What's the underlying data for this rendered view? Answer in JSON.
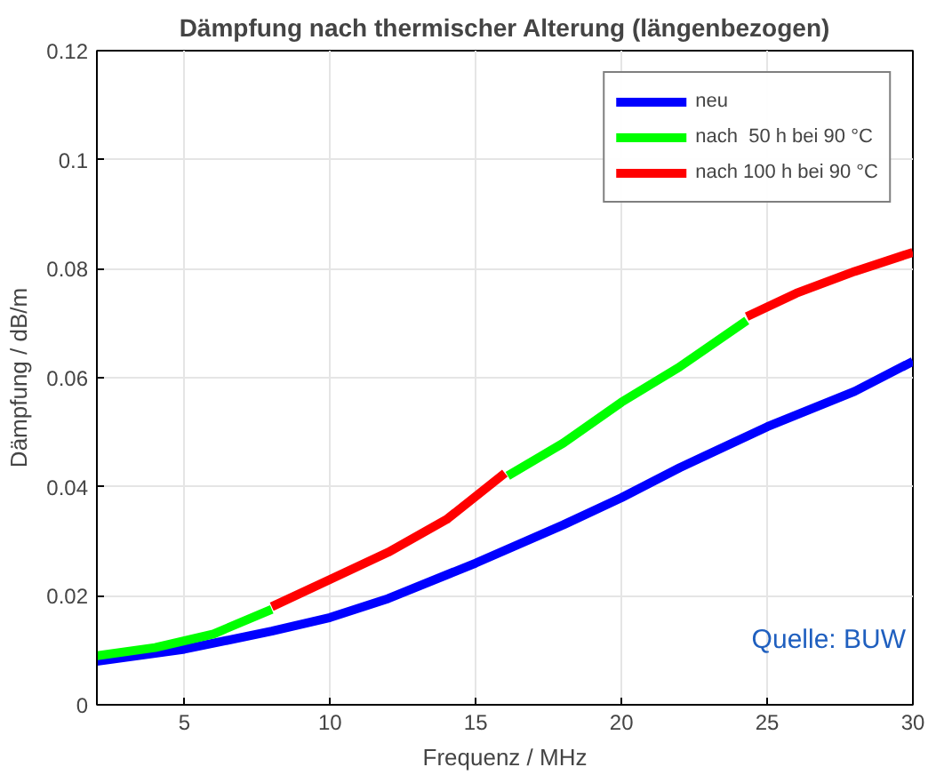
{
  "chart_data": {
    "type": "line",
    "title": "Dämpfung nach thermischer Alterung (längenbezogen)",
    "xlabel": "Frequenz / MHz",
    "ylabel": "Dämpfung / dB/m",
    "xlim": [
      2,
      30
    ],
    "ylim": [
      0,
      0.12
    ],
    "xticks": [
      5,
      10,
      15,
      20,
      25,
      30
    ],
    "yticks": [
      0,
      0.02,
      0.04,
      0.06,
      0.08,
      0.1,
      0.12
    ],
    "grid": true,
    "legend": "top right",
    "line_style": "solid",
    "series": [
      {
        "name": "neu",
        "color": "#0000ff",
        "x": [
          2,
          5,
          8,
          10,
          12,
          15,
          18,
          20,
          22,
          25,
          28,
          30
        ],
        "values": [
          0.008,
          0.0102,
          0.0135,
          0.016,
          0.0195,
          0.026,
          0.033,
          0.038,
          0.0435,
          0.051,
          0.0575,
          0.063
        ]
      },
      {
        "name": "nach  50 h bei 90 °C",
        "color": "#00ff00",
        "x": [
          2,
          4,
          6,
          8,
          12,
          16.1,
          18,
          20,
          22,
          24.3
        ],
        "values": [
          0.009,
          0.0105,
          0.013,
          0.0175,
          null,
          0.042,
          0.048,
          0.0555,
          0.062,
          0.0705
        ]
      },
      {
        "name": "nach 100 h bei 90 °C",
        "color": "#ff0000",
        "x": [
          8,
          10,
          12,
          14,
          16,
          20,
          24.3,
          26,
          28,
          30
        ],
        "values": [
          0.018,
          0.023,
          0.028,
          0.034,
          0.0425,
          null,
          0.0712,
          0.0755,
          0.0795,
          0.083
        ]
      }
    ],
    "annotations": [
      "Quelle: BUW"
    ]
  }
}
